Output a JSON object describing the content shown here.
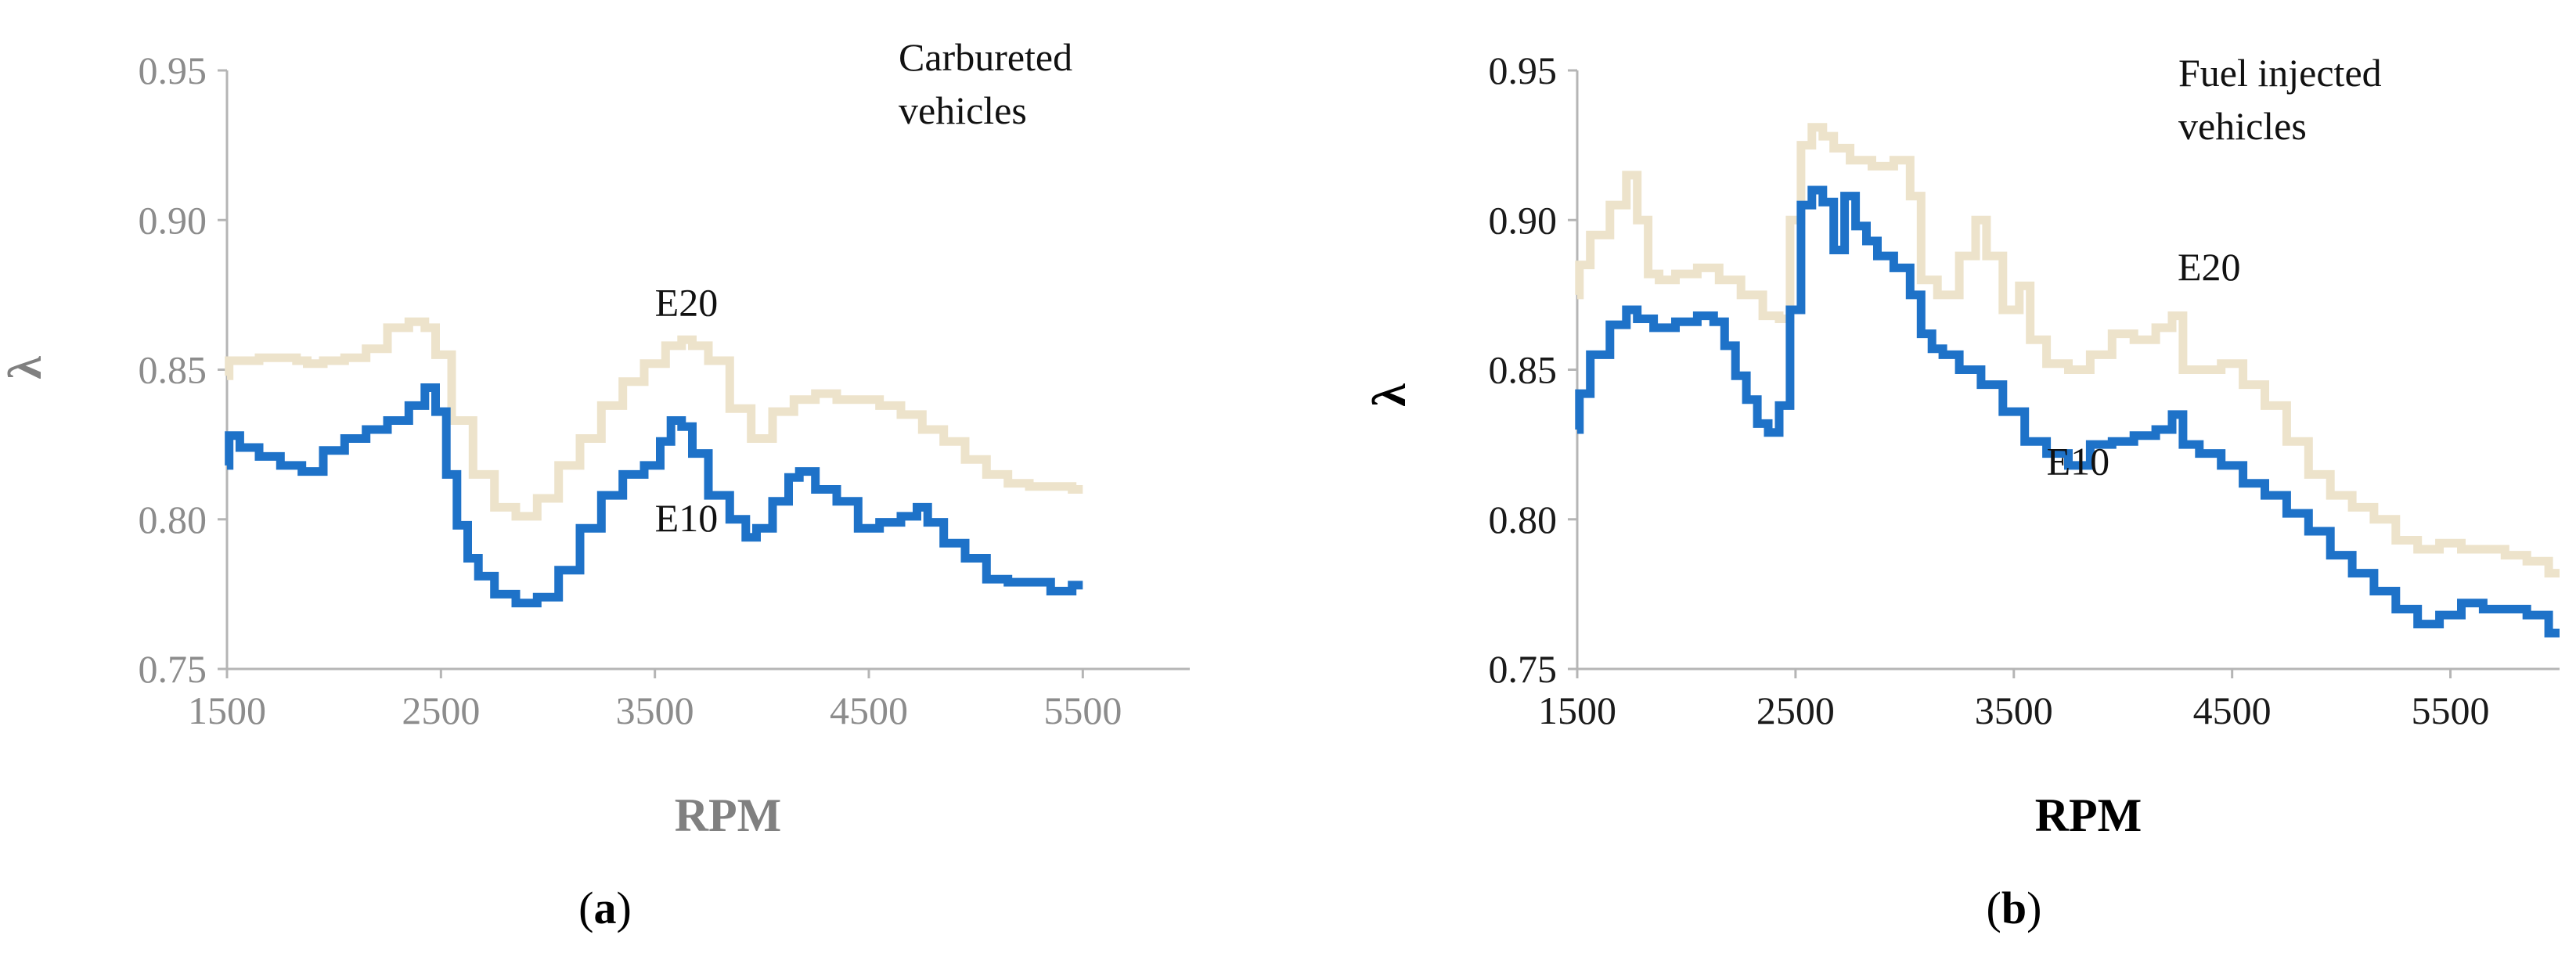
{
  "chart_data": [
    {
      "type": "line",
      "panel_label": "a",
      "annotation_lines": [
        "Carbureted",
        "vehicles"
      ],
      "xlabel": "RPM",
      "ylabel": "λ",
      "xlim": [
        1500,
        6000
      ],
      "ylim": [
        0.75,
        0.95
      ],
      "xticks": [
        1500,
        2500,
        3500,
        4500,
        5500
      ],
      "yticks": [
        0.75,
        0.8,
        0.85,
        0.9,
        0.95
      ],
      "ytick_labels": [
        "0.75",
        "0.80",
        "0.85",
        "0.90",
        "0.95"
      ],
      "grid": false,
      "series": [
        {
          "name": "E20",
          "color": "#ede3cb",
          "x": [
            1500,
            1520,
            1600,
            1700,
            1800,
            1850,
            1900,
            2000,
            2100,
            2200,
            2300,
            2400,
            2450,
            2500,
            2600,
            2700,
            2800,
            2900,
            3000,
            3100,
            3200,
            3300,
            3400,
            3500,
            3600,
            3650,
            3700,
            3800,
            3900,
            4000,
            4100,
            4200,
            4300,
            4400,
            4500,
            4600,
            4700,
            4800,
            4900,
            5000,
            5100,
            5200,
            5300,
            5400,
            5500
          ],
          "values": [
            0.848,
            0.853,
            0.853,
            0.854,
            0.854,
            0.853,
            0.852,
            0.853,
            0.854,
            0.857,
            0.864,
            0.866,
            0.864,
            0.855,
            0.833,
            0.815,
            0.804,
            0.801,
            0.807,
            0.818,
            0.827,
            0.838,
            0.846,
            0.852,
            0.858,
            0.86,
            0.858,
            0.853,
            0.837,
            0.827,
            0.836,
            0.84,
            0.842,
            0.84,
            0.84,
            0.838,
            0.835,
            0.83,
            0.826,
            0.82,
            0.815,
            0.812,
            0.811,
            0.811,
            0.81
          ]
        },
        {
          "name": "E10",
          "color": "#1e72c8",
          "x": [
            1500,
            1520,
            1600,
            1700,
            1800,
            1900,
            2000,
            2100,
            2200,
            2300,
            2400,
            2450,
            2500,
            2550,
            2600,
            2650,
            2700,
            2800,
            2900,
            3000,
            3100,
            3200,
            3300,
            3400,
            3500,
            3550,
            3600,
            3650,
            3700,
            3800,
            3900,
            3950,
            4000,
            4100,
            4150,
            4200,
            4300,
            4400,
            4500,
            4600,
            4700,
            4750,
            4800,
            4900,
            5000,
            5100,
            5200,
            5300,
            5400,
            5500
          ],
          "values": [
            0.818,
            0.828,
            0.824,
            0.821,
            0.818,
            0.816,
            0.823,
            0.827,
            0.83,
            0.833,
            0.838,
            0.844,
            0.836,
            0.815,
            0.798,
            0.787,
            0.781,
            0.775,
            0.772,
            0.774,
            0.783,
            0.797,
            0.808,
            0.815,
            0.818,
            0.826,
            0.833,
            0.831,
            0.822,
            0.808,
            0.8,
            0.794,
            0.797,
            0.806,
            0.814,
            0.816,
            0.81,
            0.806,
            0.797,
            0.799,
            0.801,
            0.804,
            0.799,
            0.792,
            0.787,
            0.78,
            0.779,
            0.779,
            0.776,
            0.778
          ]
        }
      ],
      "series_labels": [
        {
          "text": "E20",
          "x": 3500,
          "y": 0.868
        },
        {
          "text": "E10",
          "x": 3500,
          "y": 0.796
        }
      ]
    },
    {
      "type": "line",
      "panel_label": "b",
      "annotation_lines": [
        "Fuel injected",
        "vehicles"
      ],
      "xlabel": "RPM",
      "ylabel": "λ",
      "xlim": [
        1500,
        6000
      ],
      "ylim": [
        0.75,
        0.95
      ],
      "xticks": [
        1500,
        2500,
        3500,
        4500,
        5500
      ],
      "yticks": [
        0.75,
        0.8,
        0.85,
        0.9,
        0.95
      ],
      "ytick_labels": [
        "0.75",
        "0.80",
        "0.85",
        "0.90",
        "0.95"
      ],
      "grid": false,
      "series": [
        {
          "name": "E20",
          "color": "#ede3cb",
          "x": [
            1500,
            1520,
            1600,
            1700,
            1750,
            1800,
            1850,
            1900,
            2000,
            2100,
            2200,
            2300,
            2400,
            2450,
            2500,
            2550,
            2600,
            2650,
            2700,
            2800,
            2900,
            3000,
            3050,
            3100,
            3200,
            3300,
            3350,
            3400,
            3500,
            3550,
            3600,
            3700,
            3800,
            3900,
            4000,
            4100,
            4200,
            4250,
            4300,
            4400,
            4500,
            4600,
            4700,
            4800,
            4900,
            5000,
            5100,
            5200,
            5300,
            5400,
            5500,
            5600,
            5700,
            5800,
            5900,
            6000
          ],
          "values": [
            0.875,
            0.885,
            0.895,
            0.905,
            0.915,
            0.9,
            0.882,
            0.88,
            0.882,
            0.884,
            0.88,
            0.875,
            0.868,
            0.867,
            0.9,
            0.925,
            0.931,
            0.928,
            0.924,
            0.92,
            0.918,
            0.92,
            0.908,
            0.88,
            0.875,
            0.888,
            0.9,
            0.888,
            0.87,
            0.878,
            0.86,
            0.852,
            0.85,
            0.855,
            0.862,
            0.86,
            0.864,
            0.868,
            0.85,
            0.85,
            0.852,
            0.845,
            0.838,
            0.826,
            0.815,
            0.808,
            0.804,
            0.8,
            0.793,
            0.79,
            0.792,
            0.79,
            0.79,
            0.788,
            0.786,
            0.782
          ]
        },
        {
          "name": "E10",
          "color": "#1e72c8",
          "x": [
            1500,
            1520,
            1600,
            1700,
            1750,
            1800,
            1900,
            2000,
            2100,
            2150,
            2200,
            2250,
            2300,
            2350,
            2400,
            2450,
            2500,
            2550,
            2600,
            2650,
            2700,
            2750,
            2800,
            2850,
            2900,
            3000,
            3050,
            3100,
            3150,
            3200,
            3300,
            3400,
            3500,
            3600,
            3700,
            3800,
            3900,
            4000,
            4100,
            4200,
            4250,
            4300,
            4400,
            4500,
            4600,
            4700,
            4800,
            4900,
            5000,
            5100,
            5200,
            5300,
            5400,
            5500,
            5600,
            5700,
            5800,
            5900,
            6000
          ],
          "values": [
            0.83,
            0.842,
            0.855,
            0.865,
            0.87,
            0.867,
            0.864,
            0.866,
            0.868,
            0.866,
            0.858,
            0.848,
            0.84,
            0.832,
            0.829,
            0.838,
            0.87,
            0.905,
            0.91,
            0.906,
            0.89,
            0.908,
            0.898,
            0.893,
            0.888,
            0.884,
            0.875,
            0.862,
            0.857,
            0.855,
            0.85,
            0.845,
            0.836,
            0.826,
            0.822,
            0.818,
            0.825,
            0.826,
            0.828,
            0.83,
            0.835,
            0.825,
            0.822,
            0.818,
            0.812,
            0.808,
            0.802,
            0.796,
            0.788,
            0.782,
            0.776,
            0.77,
            0.765,
            0.768,
            0.772,
            0.77,
            0.77,
            0.768,
            0.762
          ]
        }
      ],
      "series_labels": [
        {
          "text": "E20",
          "x": 4250,
          "y": 0.88
        },
        {
          "text": "E10",
          "x": 3650,
          "y": 0.815
        }
      ]
    }
  ]
}
